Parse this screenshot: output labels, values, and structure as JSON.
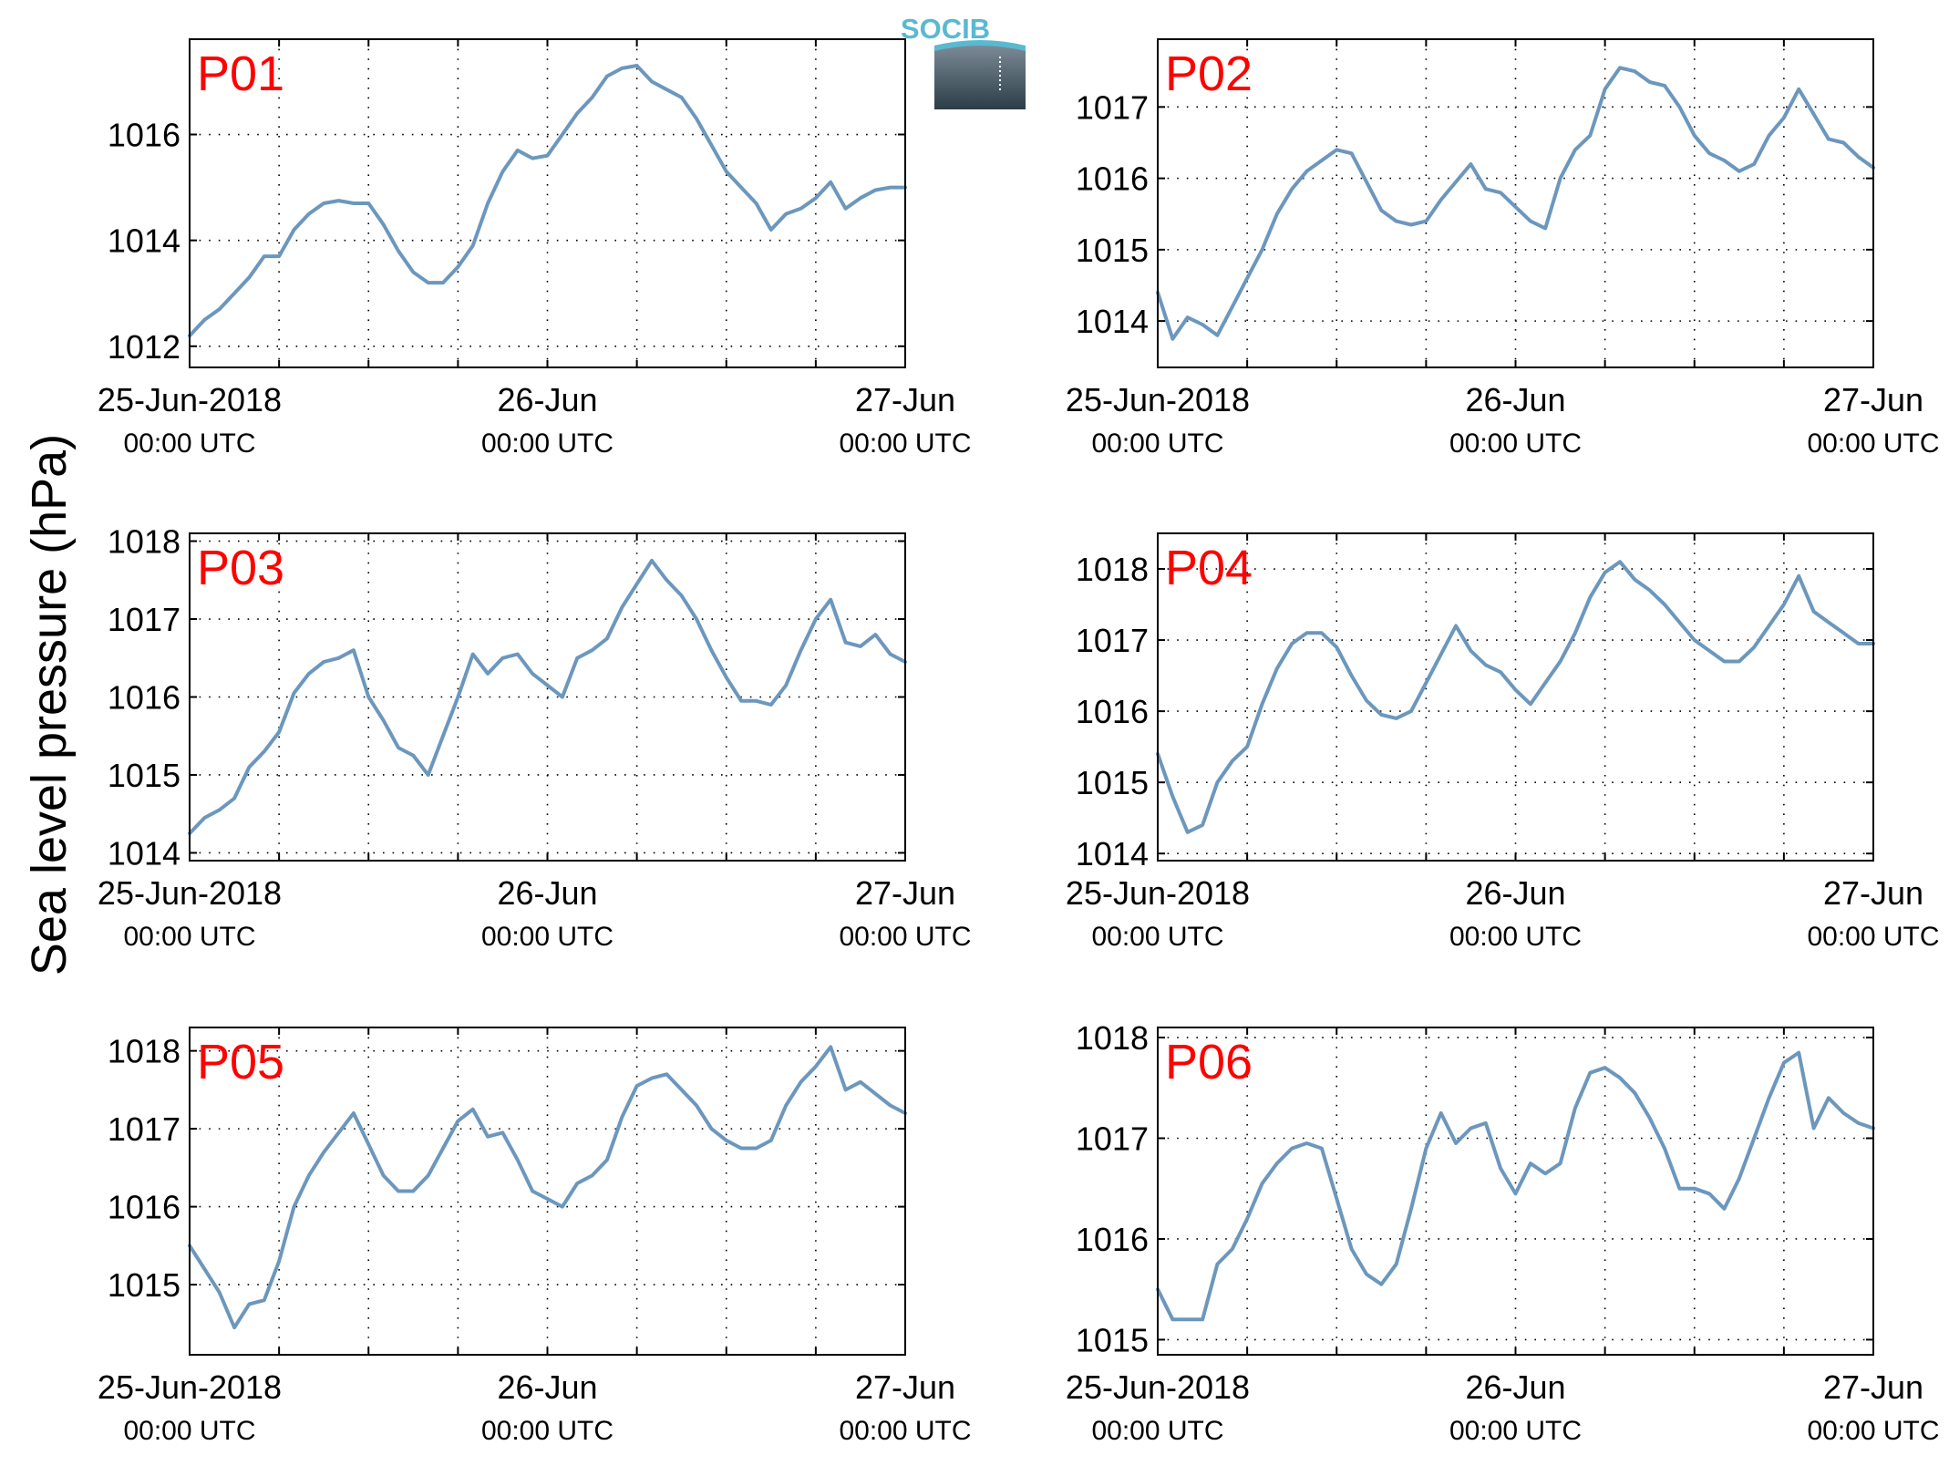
{
  "figure": {
    "ylabel": "Sea level pressure (hPa)",
    "line_color": "#6c97bd",
    "label_color": "#ff0000",
    "logo": {
      "text": "SOCIB",
      "text_color": "#59b9d0",
      "top_color": "#7e8d99",
      "bottom_color": "#2c3d48"
    }
  },
  "chart_data": [
    {
      "type": "line",
      "title": "P01",
      "ylim": [
        1011.6,
        1017.8
      ],
      "yticks": [
        1012,
        1014,
        1016
      ],
      "xlim": [
        0,
        48
      ],
      "grid": true,
      "xtick_labels": [
        {
          "x": 0,
          "date": "25-Jun-2018",
          "time": "00:00 UTC"
        },
        {
          "x": 24,
          "date": "26-Jun",
          "time": "00:00 UTC"
        },
        {
          "x": 48,
          "date": "27-Jun",
          "time": "00:00 UTC"
        }
      ],
      "series": [
        {
          "x": [
            0,
            1,
            2,
            3,
            4,
            5,
            6,
            7,
            8,
            9,
            10,
            11,
            12,
            13,
            14,
            15,
            16,
            17,
            18,
            19,
            20,
            21,
            22,
            23,
            24,
            25,
            26,
            27,
            28,
            29,
            30,
            31,
            32,
            33,
            34,
            35,
            36,
            37,
            38,
            39,
            40,
            41,
            42,
            43,
            44,
            45,
            46,
            47,
            48
          ],
          "values": [
            1012.2,
            1012.5,
            1012.7,
            1013.0,
            1013.3,
            1013.7,
            1013.7,
            1014.2,
            1014.5,
            1014.7,
            1014.75,
            1014.7,
            1014.7,
            1014.3,
            1013.8,
            1013.4,
            1013.2,
            1013.2,
            1013.5,
            1013.9,
            1014.7,
            1015.3,
            1015.7,
            1015.55,
            1015.6,
            1016.0,
            1016.4,
            1016.7,
            1017.1,
            1017.25,
            1017.3,
            1017.0,
            1016.85,
            1016.7,
            1016.3,
            1015.8,
            1015.3,
            1015.0,
            1014.7,
            1014.2,
            1014.5,
            1014.6,
            1014.8,
            1015.1,
            1014.6,
            1014.8,
            1014.95,
            1015.0,
            1015.0
          ]
        }
      ]
    },
    {
      "type": "line",
      "title": "P02",
      "ylim": [
        1013.35,
        1017.95
      ],
      "yticks": [
        1014,
        1015,
        1016,
        1017
      ],
      "xlim": [
        0,
        48
      ],
      "grid": true,
      "xtick_labels": [
        {
          "x": 0,
          "date": "25-Jun-2018",
          "time": "00:00 UTC"
        },
        {
          "x": 24,
          "date": "26-Jun",
          "time": "00:00 UTC"
        },
        {
          "x": 48,
          "date": "27-Jun",
          "time": "00:00 UTC"
        }
      ],
      "series": [
        {
          "x": [
            0,
            1,
            2,
            3,
            4,
            5,
            6,
            7,
            8,
            9,
            10,
            11,
            12,
            13,
            14,
            15,
            16,
            17,
            18,
            19,
            20,
            21,
            22,
            23,
            24,
            25,
            26,
            27,
            28,
            29,
            30,
            31,
            32,
            33,
            34,
            35,
            36,
            37,
            38,
            39,
            40,
            41,
            42,
            43,
            44,
            45,
            46,
            47,
            48
          ],
          "values": [
            1014.4,
            1013.75,
            1014.05,
            1013.95,
            1013.8,
            1014.2,
            1014.6,
            1015.0,
            1015.5,
            1015.85,
            1016.1,
            1016.25,
            1016.4,
            1016.35,
            1015.95,
            1015.55,
            1015.4,
            1015.35,
            1015.4,
            1015.7,
            1015.95,
            1016.2,
            1015.85,
            1015.8,
            1015.6,
            1015.4,
            1015.3,
            1016.0,
            1016.4,
            1016.6,
            1017.25,
            1017.55,
            1017.5,
            1017.35,
            1017.3,
            1017.0,
            1016.6,
            1016.35,
            1016.25,
            1016.1,
            1016.2,
            1016.6,
            1016.85,
            1017.25,
            1016.9,
            1016.55,
            1016.5,
            1016.3,
            1016.15
          ]
        }
      ]
    },
    {
      "type": "line",
      "title": "P03",
      "ylim": [
        1013.9,
        1018.1
      ],
      "yticks": [
        1014,
        1015,
        1016,
        1017,
        1018
      ],
      "xlim": [
        0,
        48
      ],
      "grid": true,
      "xtick_labels": [
        {
          "x": 0,
          "date": "25-Jun-2018",
          "time": "00:00 UTC"
        },
        {
          "x": 24,
          "date": "26-Jun",
          "time": "00:00 UTC"
        },
        {
          "x": 48,
          "date": "27-Jun",
          "time": "00:00 UTC"
        }
      ],
      "series": [
        {
          "x": [
            0,
            1,
            2,
            3,
            4,
            5,
            6,
            7,
            8,
            9,
            10,
            11,
            12,
            13,
            14,
            15,
            16,
            17,
            18,
            19,
            20,
            21,
            22,
            23,
            24,
            25,
            26,
            27,
            28,
            29,
            30,
            31,
            32,
            33,
            34,
            35,
            36,
            37,
            38,
            39,
            40,
            41,
            42,
            43,
            44,
            45,
            46,
            47,
            48
          ],
          "values": [
            1014.25,
            1014.45,
            1014.55,
            1014.7,
            1015.1,
            1015.3,
            1015.55,
            1016.05,
            1016.3,
            1016.45,
            1016.5,
            1016.6,
            1016.0,
            1015.7,
            1015.35,
            1015.25,
            1015.0,
            1015.5,
            1016.0,
            1016.55,
            1016.3,
            1016.5,
            1016.55,
            1016.3,
            1016.15,
            1016.0,
            1016.5,
            1016.6,
            1016.75,
            1017.15,
            1017.45,
            1017.75,
            1017.5,
            1017.3,
            1017.0,
            1016.6,
            1016.25,
            1015.95,
            1015.95,
            1015.9,
            1016.15,
            1016.6,
            1017.0,
            1017.25,
            1016.7,
            1016.65,
            1016.8,
            1016.55,
            1016.45
          ]
        }
      ]
    },
    {
      "type": "line",
      "title": "P04",
      "ylim": [
        1013.9,
        1018.5
      ],
      "yticks": [
        1014,
        1015,
        1016,
        1017,
        1018
      ],
      "xlim": [
        0,
        48
      ],
      "grid": true,
      "xtick_labels": [
        {
          "x": 0,
          "date": "25-Jun-2018",
          "time": "00:00 UTC"
        },
        {
          "x": 24,
          "date": "26-Jun",
          "time": "00:00 UTC"
        },
        {
          "x": 48,
          "date": "27-Jun",
          "time": "00:00 UTC"
        }
      ],
      "series": [
        {
          "x": [
            0,
            1,
            2,
            3,
            4,
            5,
            6,
            7,
            8,
            9,
            10,
            11,
            12,
            13,
            14,
            15,
            16,
            17,
            18,
            19,
            20,
            21,
            22,
            23,
            24,
            25,
            26,
            27,
            28,
            29,
            30,
            31,
            32,
            33,
            34,
            35,
            36,
            37,
            38,
            39,
            40,
            41,
            42,
            43,
            44,
            45,
            46,
            47,
            48
          ],
          "values": [
            1015.4,
            1014.8,
            1014.3,
            1014.4,
            1015.0,
            1015.3,
            1015.5,
            1016.1,
            1016.6,
            1016.95,
            1017.1,
            1017.1,
            1016.9,
            1016.5,
            1016.15,
            1015.95,
            1015.9,
            1016.0,
            1016.4,
            1016.8,
            1017.2,
            1016.85,
            1016.65,
            1016.55,
            1016.3,
            1016.1,
            1016.4,
            1016.7,
            1017.1,
            1017.6,
            1017.95,
            1018.1,
            1017.85,
            1017.7,
            1017.5,
            1017.25,
            1017.0,
            1016.85,
            1016.7,
            1016.7,
            1016.9,
            1017.2,
            1017.5,
            1017.9,
            1017.4,
            1017.25,
            1017.1,
            1016.95,
            1016.95
          ]
        }
      ]
    },
    {
      "type": "line",
      "title": "P05",
      "ylim": [
        1014.1,
        1018.3
      ],
      "yticks": [
        1015,
        1016,
        1017,
        1018
      ],
      "xlim": [
        0,
        48
      ],
      "grid": true,
      "xtick_labels": [
        {
          "x": 0,
          "date": "25-Jun-2018",
          "time": "00:00 UTC"
        },
        {
          "x": 24,
          "date": "26-Jun",
          "time": "00:00 UTC"
        },
        {
          "x": 48,
          "date": "27-Jun",
          "time": "00:00 UTC"
        }
      ],
      "series": [
        {
          "x": [
            0,
            1,
            2,
            3,
            4,
            5,
            6,
            7,
            8,
            9,
            10,
            11,
            12,
            13,
            14,
            15,
            16,
            17,
            18,
            19,
            20,
            21,
            22,
            23,
            24,
            25,
            26,
            27,
            28,
            29,
            30,
            31,
            32,
            33,
            34,
            35,
            36,
            37,
            38,
            39,
            40,
            41,
            42,
            43,
            44,
            45,
            46,
            47,
            48
          ],
          "values": [
            1015.5,
            1015.2,
            1014.9,
            1014.45,
            1014.75,
            1014.8,
            1015.3,
            1016.0,
            1016.4,
            1016.7,
            1016.95,
            1017.2,
            1016.8,
            1016.4,
            1016.2,
            1016.2,
            1016.4,
            1016.75,
            1017.1,
            1017.25,
            1016.9,
            1016.95,
            1016.6,
            1016.2,
            1016.1,
            1016.0,
            1016.3,
            1016.4,
            1016.6,
            1017.15,
            1017.55,
            1017.65,
            1017.7,
            1017.5,
            1017.3,
            1017.0,
            1016.85,
            1016.75,
            1016.75,
            1016.85,
            1017.3,
            1017.6,
            1017.8,
            1018.05,
            1017.5,
            1017.6,
            1017.45,
            1017.3,
            1017.2
          ]
        }
      ]
    },
    {
      "type": "line",
      "title": "P06",
      "ylim": [
        1014.85,
        1018.1
      ],
      "yticks": [
        1015,
        1016,
        1017,
        1018
      ],
      "xlim": [
        0,
        48
      ],
      "grid": true,
      "xtick_labels": [
        {
          "x": 0,
          "date": "25-Jun-2018",
          "time": "00:00 UTC"
        },
        {
          "x": 24,
          "date": "26-Jun",
          "time": "00:00 UTC"
        },
        {
          "x": 48,
          "date": "27-Jun",
          "time": "00:00 UTC"
        }
      ],
      "series": [
        {
          "x": [
            0,
            1,
            2,
            3,
            4,
            5,
            6,
            7,
            8,
            9,
            10,
            11,
            12,
            13,
            14,
            15,
            16,
            17,
            18,
            19,
            20,
            21,
            22,
            23,
            24,
            25,
            26,
            27,
            28,
            29,
            30,
            31,
            32,
            33,
            34,
            35,
            36,
            37,
            38,
            39,
            40,
            41,
            42,
            43,
            44,
            45,
            46,
            47,
            48
          ],
          "values": [
            1015.5,
            1015.2,
            1015.2,
            1015.2,
            1015.75,
            1015.9,
            1016.2,
            1016.55,
            1016.75,
            1016.9,
            1016.95,
            1016.9,
            1016.4,
            1015.9,
            1015.65,
            1015.55,
            1015.75,
            1016.3,
            1016.9,
            1017.25,
            1016.95,
            1017.1,
            1017.15,
            1016.7,
            1016.45,
            1016.75,
            1016.65,
            1016.75,
            1017.3,
            1017.65,
            1017.7,
            1017.6,
            1017.45,
            1017.2,
            1016.9,
            1016.5,
            1016.5,
            1016.45,
            1016.3,
            1016.6,
            1017.0,
            1017.4,
            1017.75,
            1017.85,
            1017.1,
            1017.4,
            1017.25,
            1017.15,
            1017.1
          ]
        }
      ]
    }
  ]
}
